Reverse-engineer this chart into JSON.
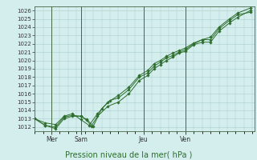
{
  "title": "Pression niveau de la mer( hPa )",
  "background_color": "#d4eeee",
  "plot_bg_color": "#d4eeee",
  "grid_color": "#aacccc",
  "line_color": "#2d6e2d",
  "marker_color": "#2d6e2d",
  "axis_color": "#2d6e2d",
  "spine_color": "#2d6e2d",
  "ylim": [
    1011.5,
    1026.5
  ],
  "yticks": [
    1012,
    1013,
    1014,
    1015,
    1016,
    1017,
    1018,
    1019,
    1020,
    1021,
    1022,
    1023,
    1024,
    1025,
    1026
  ],
  "day_labels": [
    "Mer",
    "Sam",
    "Jeu",
    "Ven"
  ],
  "day_positions": [
    0.08,
    0.22,
    0.52,
    0.72
  ],
  "xlim": [
    0.0,
    1.05
  ],
  "series1_x": [
    0.0,
    0.05,
    0.1,
    0.14,
    0.18,
    0.22,
    0.25,
    0.27,
    0.3,
    0.35,
    0.4,
    0.45,
    0.5,
    0.54,
    0.57,
    0.6,
    0.63,
    0.66,
    0.69,
    0.72,
    0.76,
    0.8,
    0.84,
    0.88,
    0.93,
    0.97,
    1.03
  ],
  "series1_y": [
    1013.0,
    1012.2,
    1011.8,
    1013.0,
    1013.3,
    1013.3,
    1012.8,
    1012.1,
    1013.3,
    1014.5,
    1015.0,
    1016.0,
    1017.6,
    1018.2,
    1019.0,
    1019.5,
    1020.0,
    1020.4,
    1020.9,
    1021.1,
    1021.9,
    1022.2,
    1022.2,
    1023.5,
    1024.5,
    1025.2,
    1026.0
  ],
  "series2_x": [
    0.0,
    0.05,
    0.1,
    0.14,
    0.18,
    0.22,
    0.25,
    0.28,
    0.32,
    0.36,
    0.4,
    0.45,
    0.5,
    0.54,
    0.57,
    0.6,
    0.63,
    0.66,
    0.69,
    0.72,
    0.76,
    0.8,
    0.84,
    0.88,
    0.93,
    0.97,
    1.03
  ],
  "series2_y": [
    1013.0,
    1012.2,
    1012.0,
    1013.2,
    1013.4,
    1013.3,
    1012.9,
    1012.1,
    1014.2,
    1015.2,
    1015.5,
    1016.5,
    1018.0,
    1018.5,
    1019.3,
    1019.8,
    1020.3,
    1020.6,
    1021.0,
    1021.3,
    1022.0,
    1022.5,
    1022.5,
    1023.8,
    1024.8,
    1025.5,
    1025.8
  ],
  "series3_x": [
    0.0,
    0.05,
    0.1,
    0.14,
    0.18,
    0.22,
    0.26,
    0.3,
    0.35,
    0.4,
    0.45,
    0.5,
    0.54,
    0.57,
    0.6,
    0.63,
    0.66,
    0.69,
    0.72,
    0.76,
    0.8,
    0.84,
    0.88,
    0.93,
    0.97,
    1.03
  ],
  "series3_y": [
    1013.0,
    1012.5,
    1012.3,
    1013.3,
    1013.6,
    1012.9,
    1012.2,
    1013.6,
    1015.0,
    1015.8,
    1016.8,
    1018.2,
    1018.8,
    1019.6,
    1020.0,
    1020.5,
    1020.9,
    1021.2,
    1021.5,
    1022.1,
    1022.5,
    1022.8,
    1024.0,
    1025.0,
    1025.7,
    1026.3
  ]
}
